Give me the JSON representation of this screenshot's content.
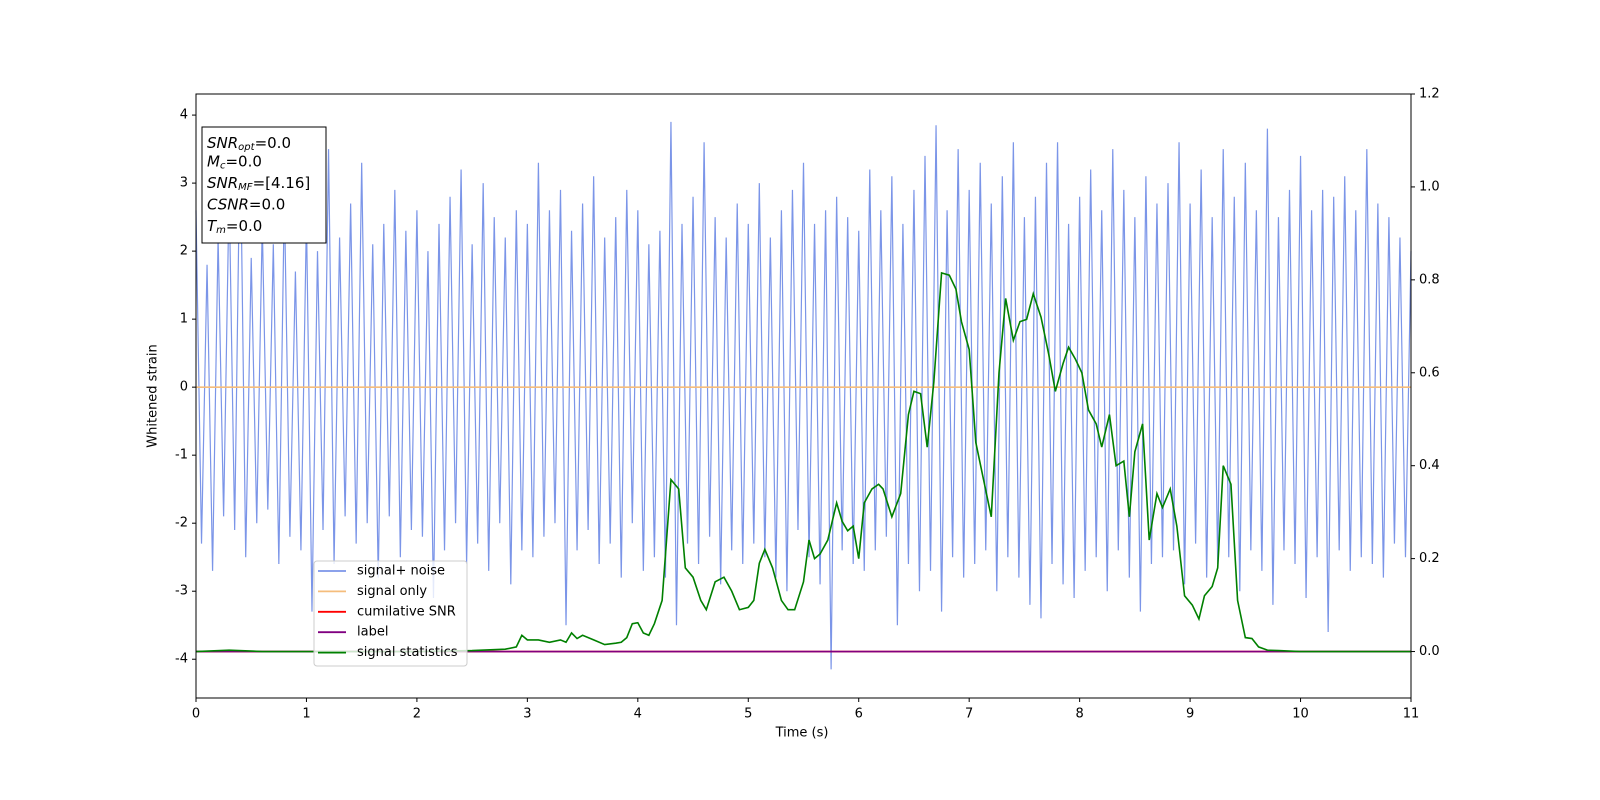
{
  "chart_data": {
    "type": "line",
    "xlabel": "Time (s)",
    "ylabel": "Whitened strain",
    "xlim": [
      0,
      11
    ],
    "xticks": [
      0,
      1,
      2,
      3,
      4,
      5,
      6,
      7,
      8,
      9,
      10,
      11
    ],
    "ylim": [
      -4.57,
      4.31
    ],
    "yticks": [
      -4,
      -3,
      -2,
      -1,
      0,
      1,
      2,
      3,
      4
    ],
    "y2lim": [
      -0.1,
      1.2
    ],
    "y2ticks": [
      {
        "value": 0,
        "label": "0.0"
      },
      0.2,
      0.4,
      0.6,
      0.8,
      {
        "value": 1,
        "label": "1.0"
      },
      1.2
    ],
    "legend": "lower left",
    "annotation": [
      {
        "name": "SNR",
        "sub": "opt",
        "text": "=0.0"
      },
      {
        "name": "M",
        "sub": "c",
        "text": "=0.0"
      },
      {
        "name": "SNR",
        "sub": "MF",
        "text": "=[4.16]"
      },
      {
        "name": "CSNR",
        "text": "=0.0"
      },
      {
        "name": "T",
        "sub": "m",
        "text": "=0.0"
      }
    ],
    "series": [
      {
        "name": "signal+ noise",
        "color": "#7b95e8",
        "x": [
          0,
          0.05,
          0.1,
          0.15,
          0.2,
          0.25,
          0.3,
          0.35,
          0.4,
          0.45,
          0.5,
          0.55,
          0.6,
          0.65,
          0.7,
          0.75,
          0.8,
          0.85,
          0.9,
          0.95,
          1,
          1.05,
          1.1,
          1.15,
          1.2,
          1.25,
          1.3,
          1.35,
          1.4,
          1.45,
          1.5,
          1.55,
          1.6,
          1.65,
          1.7,
          1.75,
          1.8,
          1.85,
          1.9,
          1.95,
          2,
          2.05,
          2.1,
          2.15,
          2.2,
          2.25,
          2.3,
          2.35,
          2.4,
          2.45,
          2.5,
          2.55,
          2.6,
          2.65,
          2.7,
          2.75,
          2.8,
          2.85,
          2.9,
          2.95,
          3,
          3.05,
          3.1,
          3.15,
          3.2,
          3.25,
          3.3,
          3.35,
          3.4,
          3.45,
          3.5,
          3.55,
          3.6,
          3.65,
          3.7,
          3.75,
          3.8,
          3.85,
          3.9,
          3.95,
          4,
          4.05,
          4.1,
          4.15,
          4.2,
          4.25,
          4.3,
          4.35,
          4.4,
          4.45,
          4.5,
          4.55,
          4.6,
          4.65,
          4.7,
          4.75,
          4.8,
          4.85,
          4.9,
          4.95,
          5,
          5.05,
          5.1,
          5.15,
          5.2,
          5.25,
          5.3,
          5.35,
          5.4,
          5.45,
          5.5,
          5.55,
          5.6,
          5.65,
          5.7,
          5.75,
          5.8,
          5.85,
          5.9,
          5.95,
          6,
          6.05,
          6.1,
          6.15,
          6.2,
          6.25,
          6.3,
          6.35,
          6.4,
          6.45,
          6.5,
          6.55,
          6.6,
          6.65,
          6.7,
          6.75,
          6.8,
          6.85,
          6.9,
          6.95,
          7,
          7.05,
          7.1,
          7.15,
          7.2,
          7.25,
          7.3,
          7.35,
          7.4,
          7.45,
          7.5,
          7.55,
          7.6,
          7.65,
          7.7,
          7.75,
          7.8,
          7.85,
          7.9,
          7.95,
          8,
          8.05,
          8.1,
          8.15,
          8.2,
          8.25,
          8.3,
          8.35,
          8.4,
          8.45,
          8.5,
          8.55,
          8.6,
          8.65,
          8.7,
          8.75,
          8.8,
          8.85,
          8.9,
          8.95,
          9,
          9.05,
          9.1,
          9.15,
          9.2,
          9.25,
          9.3,
          9.35,
          9.4,
          9.45,
          9.5,
          9.55,
          9.6,
          9.65,
          9.7,
          9.75,
          9.8,
          9.85,
          9.9,
          9.95,
          10,
          10.05,
          10.1,
          10.15,
          10.2,
          10.25,
          10.3,
          10.35,
          10.4,
          10.45,
          10.5,
          10.55,
          10.6,
          10.65,
          10.7,
          10.75,
          10.8,
          10.85,
          10.9,
          10.95,
          11
        ],
        "values": [
          2.6,
          -2.3,
          1.8,
          -2.7,
          2.2,
          -1.9,
          2.9,
          -2.1,
          3.8,
          -2.5,
          1.9,
          -2.0,
          2.4,
          -1.8,
          2.1,
          -2.6,
          2.8,
          -2.2,
          1.7,
          -2.4,
          2.5,
          -3.3,
          2.0,
          -2.1,
          3.5,
          -2.6,
          2.2,
          -1.9,
          2.7,
          -2.3,
          3.3,
          -2.0,
          2.1,
          -2.8,
          2.4,
          -1.9,
          2.9,
          -2.5,
          2.3,
          -2.1,
          2.6,
          -2.2,
          2.0,
          -3.1,
          2.4,
          -2.4,
          2.8,
          -2.0,
          3.2,
          -2.6,
          2.1,
          -2.3,
          3.0,
          -2.7,
          2.5,
          -2.0,
          2.2,
          -2.9,
          2.6,
          -2.4,
          2.4,
          -2.5,
          3.3,
          -2.2,
          2.6,
          -2.0,
          2.9,
          -3.5,
          2.3,
          -2.4,
          2.7,
          -2.1,
          3.1,
          -2.6,
          2.2,
          -2.3,
          2.5,
          -2.8,
          2.9,
          -2.0,
          2.6,
          -2.7,
          2.1,
          -2.5,
          2.3,
          -2.8,
          3.9,
          -3.5,
          2.4,
          -2.3,
          2.8,
          -2.6,
          3.6,
          -2.2,
          2.5,
          -2.9,
          2.2,
          -2.4,
          2.7,
          -2.6,
          2.4,
          -2.3,
          3.0,
          -2.5,
          2.2,
          -2.8,
          2.6,
          -3.0,
          2.9,
          -2.1,
          3.3,
          -2.5,
          2.4,
          -2.9,
          2.6,
          -4.15,
          2.8,
          -2.4,
          2.5,
          -2.6,
          2.3,
          -2.7,
          3.2,
          -2.4,
          2.6,
          -2.2,
          3.1,
          -3.5,
          2.4,
          -2.6,
          2.9,
          -3.0,
          3.4,
          -2.7,
          3.85,
          -3.3,
          2.6,
          -2.5,
          3.5,
          -2.8,
          2.9,
          -2.6,
          3.3,
          -2.4,
          2.7,
          -3.0,
          3.1,
          -2.5,
          3.6,
          -2.8,
          2.5,
          -3.2,
          2.8,
          -3.4,
          3.3,
          -2.6,
          3.6,
          -2.9,
          2.4,
          -3.1,
          2.8,
          -2.7,
          3.2,
          -2.5,
          2.6,
          -3.0,
          3.5,
          -2.4,
          2.9,
          -2.8,
          2.5,
          -3.3,
          3.1,
          -2.6,
          2.7,
          -2.5,
          3.0,
          -2.4,
          3.6,
          -2.9,
          2.7,
          -2.3,
          3.2,
          -2.8,
          2.5,
          -2.6,
          3.5,
          -2.5,
          2.8,
          -3.0,
          3.3,
          -2.4,
          2.6,
          -2.7,
          3.8,
          -3.2,
          2.5,
          -2.4,
          2.9,
          -2.6,
          3.4,
          -3.1,
          2.6,
          -2.5,
          2.9,
          -3.6,
          2.8,
          -2.4,
          3.1,
          -2.7,
          2.6,
          -2.5,
          3.5,
          -2.6,
          2.7,
          -2.8,
          2.5,
          -2.3,
          2.2,
          -2.5,
          2.0
        ]
      },
      {
        "name": "signal only",
        "color": "#f5bd7c",
        "x": [
          0,
          11
        ],
        "values": [
          0,
          0
        ]
      },
      {
        "name": "cumilative SNR",
        "color": "#ff0000",
        "axis": "y2",
        "x": [
          0,
          11
        ],
        "values": [
          0,
          0
        ]
      },
      {
        "name": "label",
        "color": "#800080",
        "axis": "y2",
        "x": [
          0,
          11
        ],
        "values": [
          0,
          0
        ]
      },
      {
        "name": "signal statistics",
        "color": "#008000",
        "axis": "y2",
        "x": [
          0,
          0.3,
          0.6,
          1,
          2,
          2.5,
          2.8,
          2.9,
          2.95,
          3,
          3.1,
          3.2,
          3.3,
          3.35,
          3.4,
          3.45,
          3.5,
          3.6,
          3.7,
          3.8,
          3.85,
          3.9,
          3.95,
          4,
          4.05,
          4.1,
          4.15,
          4.22,
          4.3,
          4.37,
          4.43,
          4.5,
          4.57,
          4.62,
          4.7,
          4.78,
          4.85,
          4.92,
          5,
          5.05,
          5.1,
          5.15,
          5.22,
          5.3,
          5.36,
          5.42,
          5.5,
          5.55,
          5.6,
          5.65,
          5.72,
          5.8,
          5.85,
          5.9,
          5.95,
          6,
          6.05,
          6.12,
          6.18,
          6.22,
          6.3,
          6.38,
          6.45,
          6.5,
          6.56,
          6.62,
          6.68,
          6.75,
          6.82,
          6.88,
          6.93,
          7,
          7.06,
          7.13,
          7.2,
          7.27,
          7.33,
          7.4,
          7.46,
          7.52,
          7.58,
          7.65,
          7.72,
          7.78,
          7.85,
          7.9,
          7.96,
          8.02,
          8.08,
          8.15,
          8.2,
          8.27,
          8.33,
          8.4,
          8.45,
          8.5,
          8.57,
          8.63,
          8.7,
          8.75,
          8.82,
          8.88,
          8.95,
          9.02,
          9.08,
          9.13,
          9.2,
          9.25,
          9.3,
          9.37,
          9.43,
          9.5,
          9.56,
          9.62,
          9.7,
          9.8,
          10,
          11
        ],
        "values": [
          0,
          0.003,
          0,
          0,
          0,
          0.002,
          0.005,
          0.01,
          0.035,
          0.025,
          0.025,
          0.02,
          0.025,
          0.02,
          0.04,
          0.028,
          0.035,
          0.025,
          0.015,
          0.018,
          0.02,
          0.03,
          0.06,
          0.062,
          0.04,
          0.035,
          0.06,
          0.11,
          0.37,
          0.35,
          0.18,
          0.16,
          0.11,
          0.09,
          0.15,
          0.16,
          0.13,
          0.09,
          0.095,
          0.11,
          0.19,
          0.22,
          0.18,
          0.11,
          0.09,
          0.09,
          0.15,
          0.24,
          0.2,
          0.21,
          0.24,
          0.32,
          0.28,
          0.26,
          0.27,
          0.2,
          0.32,
          0.35,
          0.36,
          0.35,
          0.29,
          0.34,
          0.51,
          0.56,
          0.555,
          0.44,
          0.58,
          0.815,
          0.81,
          0.78,
          0.71,
          0.65,
          0.45,
          0.37,
          0.29,
          0.6,
          0.76,
          0.67,
          0.71,
          0.715,
          0.77,
          0.72,
          0.64,
          0.56,
          0.62,
          0.655,
          0.63,
          0.6,
          0.52,
          0.49,
          0.44,
          0.51,
          0.4,
          0.41,
          0.29,
          0.43,
          0.49,
          0.24,
          0.34,
          0.31,
          0.35,
          0.27,
          0.12,
          0.1,
          0.07,
          0.12,
          0.14,
          0.18,
          0.4,
          0.36,
          0.11,
          0.03,
          0.028,
          0.01,
          0.003,
          0.002,
          0,
          0
        ]
      }
    ]
  }
}
